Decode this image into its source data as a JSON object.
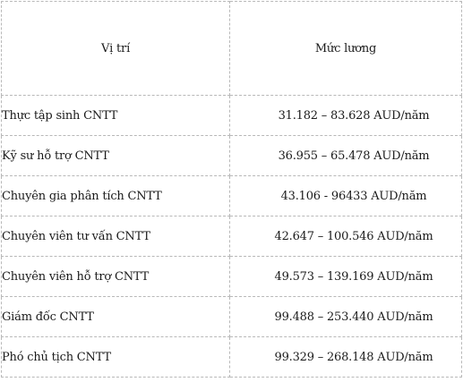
{
  "table": {
    "headers": {
      "position": "Vị trí",
      "salary": "Mức lương"
    },
    "rows": [
      {
        "position": "Thực tập sinh CNTT",
        "salary": "31.182 – 83.628 AUD/năm"
      },
      {
        "position": "Kỹ sư hỗ trợ CNTT",
        "salary": "36.955 – 65.478 AUD/năm"
      },
      {
        "position": "Chuyên gia phân tích CNTT",
        "salary": "43.106 - 96433 AUD/năm"
      },
      {
        "position": "Chuyên viên tư vấn CNTT",
        "salary": "42.647 – 100.546 AUD/năm"
      },
      {
        "position": "Chuyên viên hỗ trợ CNTT",
        "salary": "49.573 – 139.169 AUD/năm"
      },
      {
        "position": "Giám đốc CNTT",
        "salary": "99.488 – 253.440 AUD/năm"
      },
      {
        "position": "Phó chủ tịch CNTT",
        "salary": "99.329 – 268.148 AUD/năm"
      }
    ]
  }
}
